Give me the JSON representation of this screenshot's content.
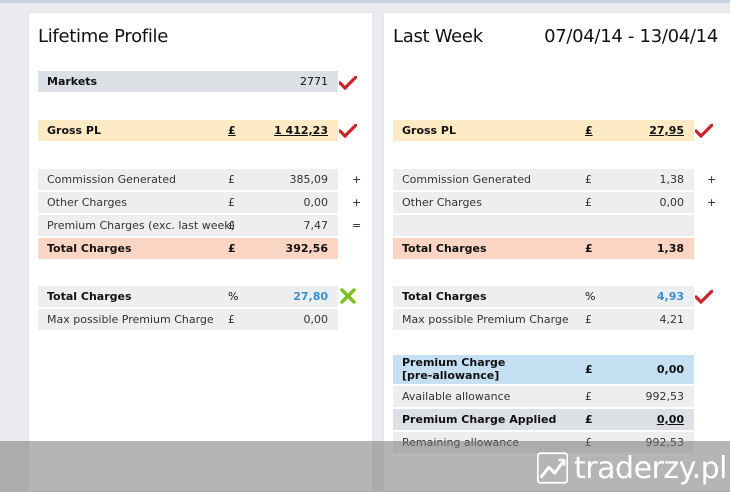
{
  "left": {
    "title": "Lifetime Profile",
    "markets": {
      "label": "Markets",
      "value": "2771"
    },
    "gross_pl": {
      "label": "Gross PL",
      "currency": "£",
      "value": "1 412,23"
    },
    "commission": {
      "label": "Commission Generated",
      "currency": "£",
      "value": "385,09",
      "sym": "+"
    },
    "other": {
      "label": "Other Charges",
      "currency": "£",
      "value": "0,00",
      "sym": "+"
    },
    "premium": {
      "label": "Premium Charges (exc. last week)",
      "currency": "£",
      "value": "7,47",
      "sym": "="
    },
    "total": {
      "label": "Total Charges",
      "currency": "£",
      "value": "392,56"
    },
    "total_pct": {
      "label": "Total Charges",
      "unit": "%",
      "value": "27,80"
    },
    "max_premium": {
      "label": "Max possible Premium Charge",
      "currency": "£",
      "value": "0,00"
    }
  },
  "right": {
    "title": "Last Week",
    "date_range": "07/04/14 - 13/04/14",
    "gross_pl": {
      "label": "Gross PL",
      "currency": "£",
      "value": "27,95"
    },
    "commission": {
      "label": "Commission Generated",
      "currency": "£",
      "value": "1,38",
      "sym": "+"
    },
    "other": {
      "label": "Other Charges",
      "currency": "£",
      "value": "0,00",
      "sym": "+"
    },
    "total": {
      "label": "Total Charges",
      "currency": "£",
      "value": "1,38"
    },
    "total_pct": {
      "label": "Total Charges",
      "unit": "%",
      "value": "4,93"
    },
    "max_premium": {
      "label": "Max possible Premium Charge",
      "currency": "£",
      "value": "4,21"
    },
    "premium_pre": {
      "label1": "Premium Charge",
      "label2": "[pre-allowance]",
      "currency": "£",
      "value": "0,00"
    },
    "available": {
      "label": "Available allowance",
      "currency": "£",
      "value": "992,53"
    },
    "premium_applied": {
      "label": "Premium Charge Applied",
      "currency": "£",
      "value": "0,00"
    },
    "remaining": {
      "label": "Remaining allowance",
      "currency": "£",
      "value": "992,53"
    }
  },
  "watermark": {
    "text": "traderzy.pl"
  },
  "colors": {
    "check": "#d0202a",
    "cross": "#7cbf1e",
    "accent_value": "#3a8fd0"
  }
}
